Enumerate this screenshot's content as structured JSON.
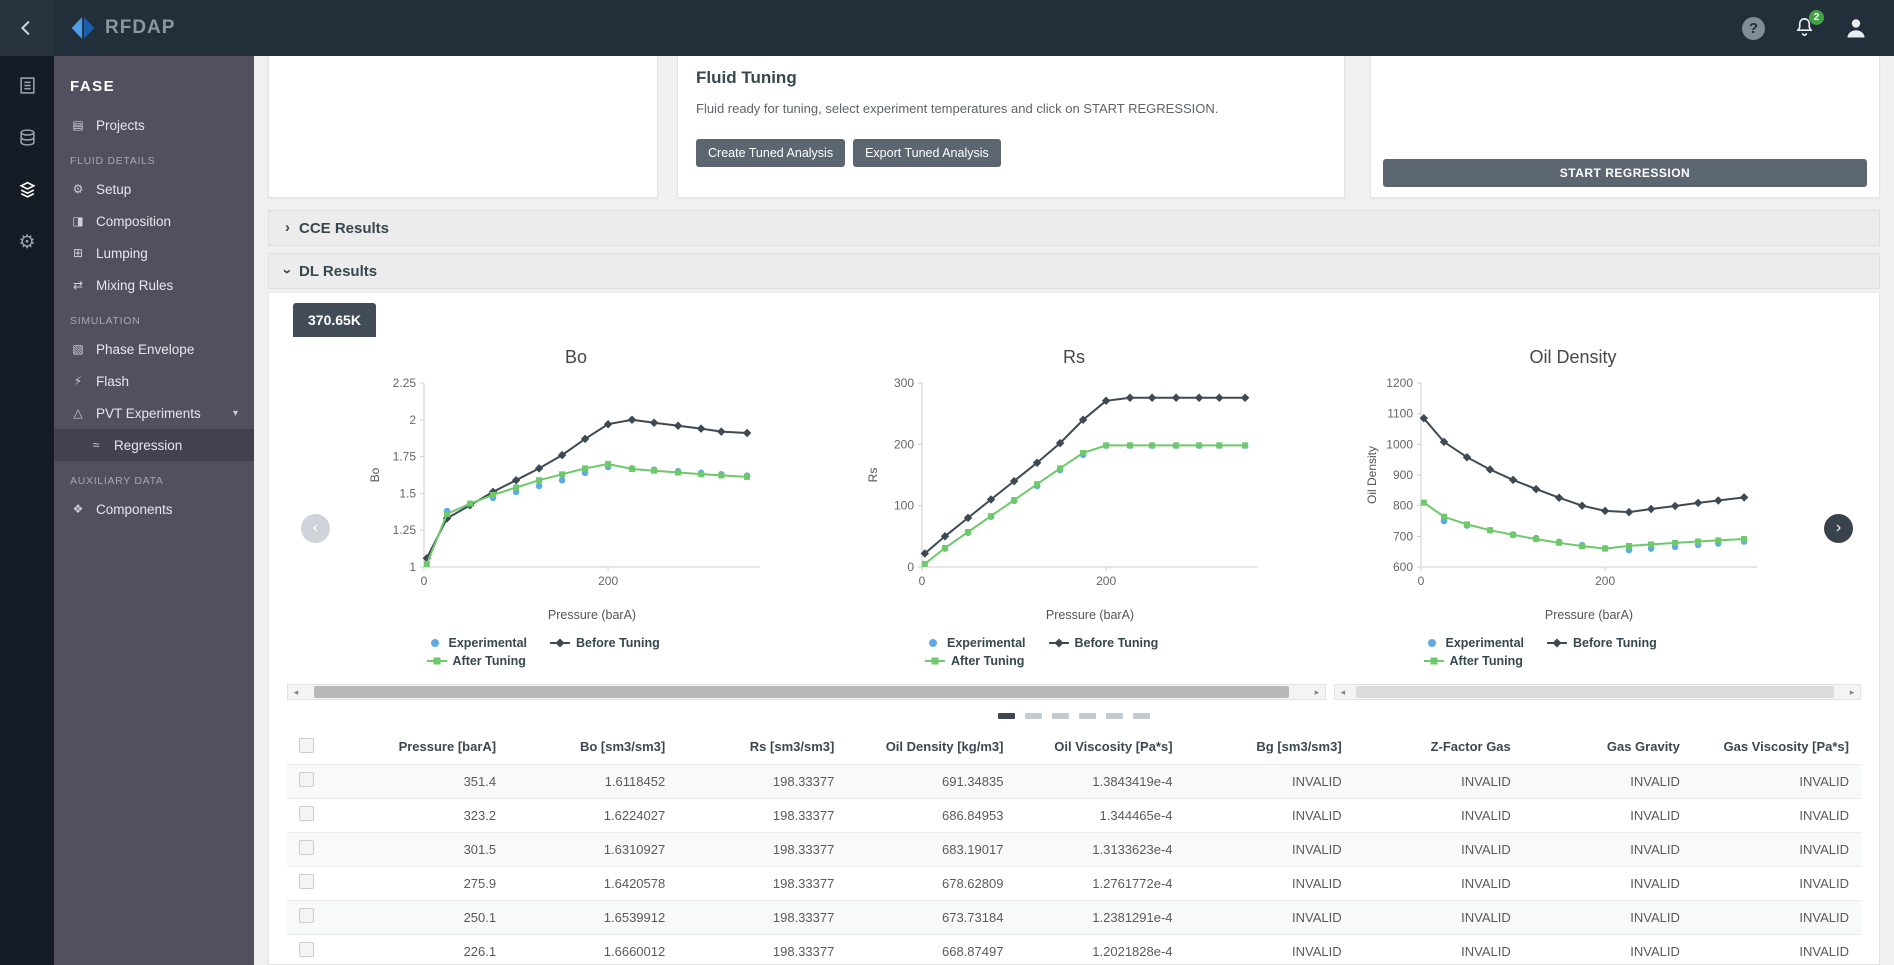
{
  "topbar": {
    "logo_text": "RFDAP",
    "notifications_badge": "2"
  },
  "icons": {
    "help": "?",
    "chevron": "›",
    "nav_left": "‹",
    "nav_right": "›",
    "scroll_left": "◂",
    "scroll_right": "▸"
  },
  "sidebar": {
    "title": "FASE",
    "groups": [
      {
        "section": "",
        "items": [
          {
            "id": "projects",
            "label": "Projects",
            "glyph": "▤"
          }
        ]
      },
      {
        "section": "FLUID DETAILS",
        "items": [
          {
            "id": "setup",
            "label": "Setup",
            "glyph": "⚙"
          },
          {
            "id": "composition",
            "label": "Composition",
            "glyph": "◨"
          },
          {
            "id": "lumping",
            "label": "Lumping",
            "glyph": "⊞"
          },
          {
            "id": "mixing-rules",
            "label": "Mixing Rules",
            "glyph": "⇄"
          }
        ]
      },
      {
        "section": "SIMULATION",
        "items": [
          {
            "id": "phase-envelope",
            "label": "Phase Envelope",
            "glyph": "▧"
          },
          {
            "id": "flash",
            "label": "Flash",
            "glyph": "⚡"
          },
          {
            "id": "pvt-experiments",
            "label": "PVT Experiments",
            "glyph": "△",
            "expandable": true
          },
          {
            "id": "regression",
            "label": "Regression",
            "glyph": "≈",
            "child": true,
            "active": true
          }
        ]
      },
      {
        "section": "AUXILIARY DATA",
        "items": [
          {
            "id": "components",
            "label": "Components",
            "glyph": "❖"
          }
        ]
      }
    ]
  },
  "fluid_tuning": {
    "title": "Fluid Tuning",
    "description": "Fluid ready for tuning, select experiment temperatures and click on START REGRESSION.",
    "create_button": "Create Tuned Analysis",
    "export_button": "Export Tuned Analysis"
  },
  "regression_card": {
    "start_button": "START REGRESSION"
  },
  "sections": {
    "cce": "CCE Results",
    "dl": "DL Results"
  },
  "temperature_tab": "370.65K",
  "colors": {
    "experimental": "#5ea9e6",
    "before_tuning": "#3d4a54",
    "after_tuning": "#6dc96a",
    "accent_dark": "#5c6671",
    "badge_green": "#43a047"
  },
  "legend": [
    {
      "label": "Experimental",
      "series": "experimental",
      "marker": "dot"
    },
    {
      "label": "Before Tuning",
      "series": "before_tuning",
      "marker": "diamond"
    },
    {
      "label": "After Tuning",
      "series": "after_tuning",
      "marker": "square"
    }
  ],
  "chart_data": [
    {
      "type": "line",
      "title": "Bo",
      "ylabel": "Bo",
      "xlabel": "Pressure (barA)",
      "xlim": [
        0,
        365
      ],
      "xticks": [
        0,
        200
      ],
      "ylim": [
        1,
        2.25
      ],
      "yticks": [
        1,
        1.25,
        1.5,
        1.75,
        2,
        2.25
      ],
      "series": [
        {
          "name": "Experimental",
          "key": "experimental",
          "x": [
            25,
            50,
            75,
            100,
            125,
            150,
            175,
            200,
            226,
            250,
            276,
            301,
            323,
            351
          ],
          "y": [
            1.38,
            1.43,
            1.47,
            1.51,
            1.55,
            1.59,
            1.64,
            1.68,
            1.67,
            1.66,
            1.65,
            1.64,
            1.63,
            1.62
          ]
        },
        {
          "name": "Before Tuning",
          "key": "before_tuning",
          "x": [
            3,
            25,
            50,
            75,
            100,
            125,
            150,
            175,
            200,
            226,
            250,
            276,
            301,
            323,
            351
          ],
          "y": [
            1.06,
            1.33,
            1.42,
            1.51,
            1.59,
            1.67,
            1.76,
            1.87,
            1.97,
            2.0,
            1.98,
            1.96,
            1.94,
            1.92,
            1.91
          ]
        },
        {
          "name": "After Tuning",
          "key": "after_tuning",
          "x": [
            3,
            25,
            50,
            75,
            100,
            125,
            150,
            175,
            200,
            226,
            250,
            276,
            301,
            323,
            351
          ],
          "y": [
            1.02,
            1.36,
            1.43,
            1.49,
            1.54,
            1.59,
            1.63,
            1.67,
            1.7,
            1.666,
            1.654,
            1.642,
            1.631,
            1.622,
            1.612
          ]
        }
      ]
    },
    {
      "type": "line",
      "title": "Rs",
      "ylabel": "Rs",
      "xlabel": "Pressure (barA)",
      "xlim": [
        0,
        365
      ],
      "xticks": [
        0,
        200
      ],
      "ylim": [
        0,
        300
      ],
      "yticks": [
        0,
        100,
        200,
        300
      ],
      "series": [
        {
          "name": "Experimental",
          "key": "experimental",
          "x": [
            25,
            50,
            75,
            100,
            125,
            150,
            175,
            200,
            226,
            250,
            276,
            301,
            323,
            351
          ],
          "y": [
            30,
            56,
            82,
            108,
            132,
            158,
            183,
            198,
            198,
            198,
            198,
            198,
            198,
            198
          ]
        },
        {
          "name": "Before Tuning",
          "key": "before_tuning",
          "x": [
            3,
            25,
            50,
            75,
            100,
            125,
            150,
            175,
            200,
            226,
            250,
            276,
            301,
            323,
            351
          ],
          "y": [
            22,
            50,
            80,
            110,
            140,
            170,
            202,
            240,
            271,
            276,
            276,
            276,
            276,
            276,
            276
          ]
        },
        {
          "name": "After Tuning",
          "key": "after_tuning",
          "x": [
            3,
            25,
            50,
            75,
            100,
            125,
            150,
            175,
            200,
            226,
            250,
            276,
            301,
            323,
            351
          ],
          "y": [
            5,
            31,
            57,
            83,
            109,
            135,
            161,
            186,
            198.3,
            198.3,
            198.3,
            198.3,
            198.3,
            198.3,
            198.3
          ]
        }
      ]
    },
    {
      "type": "line",
      "title": "Oil Density",
      "ylabel": "Oil Density",
      "xlabel": "Pressure (barA)",
      "xlim": [
        0,
        365
      ],
      "xticks": [
        0,
        200
      ],
      "ylim": [
        600,
        1200
      ],
      "yticks": [
        600,
        700,
        800,
        900,
        1000,
        1100,
        1200
      ],
      "series": [
        {
          "name": "Experimental",
          "key": "experimental",
          "x": [
            25,
            50,
            75,
            100,
            125,
            150,
            175,
            200,
            226,
            250,
            276,
            301,
            323,
            351
          ],
          "y": [
            750,
            735,
            720,
            706,
            694,
            682,
            671,
            661,
            655,
            660,
            666,
            672,
            677,
            683
          ]
        },
        {
          "name": "Before Tuning",
          "key": "before_tuning",
          "x": [
            3,
            25,
            50,
            75,
            100,
            125,
            150,
            175,
            200,
            226,
            250,
            276,
            301,
            323,
            351
          ],
          "y": [
            1085,
            1008,
            958,
            918,
            884,
            854,
            826,
            800,
            783,
            779,
            789,
            799,
            809,
            817,
            827
          ]
        },
        {
          "name": "After Tuning",
          "key": "after_tuning",
          "x": [
            3,
            25,
            50,
            75,
            100,
            125,
            150,
            175,
            200,
            226,
            250,
            276,
            301,
            323,
            351
          ],
          "y": [
            810,
            764,
            739,
            720,
            705,
            691,
            679,
            668,
            660,
            668.9,
            673.7,
            678.6,
            683.2,
            686.8,
            691.3
          ]
        }
      ]
    }
  ],
  "pagination": {
    "count": 6,
    "active": 0
  },
  "table": {
    "columns": [
      "Pressure [barA]",
      "Bo [sm3/sm3]",
      "Rs [sm3/sm3]",
      "Oil Density [kg/m3]",
      "Oil Viscosity [Pa*s]",
      "Bg [sm3/sm3]",
      "Z-Factor Gas",
      "Gas Gravity",
      "Gas Viscosity [Pa*s]"
    ],
    "rows": [
      [
        "351.4",
        "1.6118452",
        "198.33377",
        "691.34835",
        "1.3843419e-4",
        "INVALID",
        "INVALID",
        "INVALID",
        "INVALID"
      ],
      [
        "323.2",
        "1.6224027",
        "198.33377",
        "686.84953",
        "1.344465e-4",
        "INVALID",
        "INVALID",
        "INVALID",
        "INVALID"
      ],
      [
        "301.5",
        "1.6310927",
        "198.33377",
        "683.19017",
        "1.3133623e-4",
        "INVALID",
        "INVALID",
        "INVALID",
        "INVALID"
      ],
      [
        "275.9",
        "1.6420578",
        "198.33377",
        "678.62809",
        "1.2761772e-4",
        "INVALID",
        "INVALID",
        "INVALID",
        "INVALID"
      ],
      [
        "250.1",
        "1.6539912",
        "198.33377",
        "673.73184",
        "1.2381291e-4",
        "INVALID",
        "INVALID",
        "INVALID",
        "INVALID"
      ],
      [
        "226.1",
        "1.6660012",
        "198.33377",
        "668.87497",
        "1.2021828e-4",
        "INVALID",
        "INVALID",
        "INVALID",
        "INVALID"
      ]
    ]
  }
}
